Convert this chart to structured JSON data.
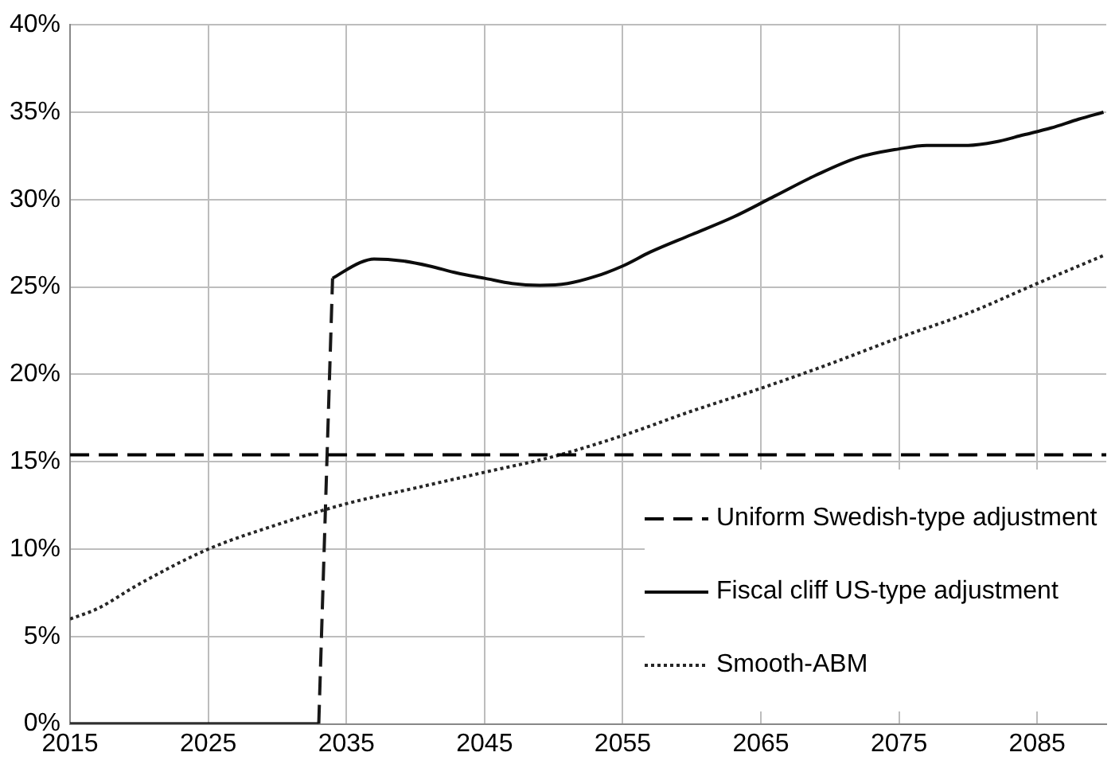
{
  "chart_data": {
    "type": "line",
    "xlim": [
      2015,
      2090
    ],
    "xticks": [
      2015,
      2025,
      2035,
      2045,
      2055,
      2065,
      2075,
      2085
    ],
    "ylim": [
      0,
      40
    ],
    "yticks": [
      {
        "value": 0,
        "label": "0%"
      },
      {
        "value": 5,
        "label": "5%"
      },
      {
        "value": 10,
        "label": "10%"
      },
      {
        "value": 15,
        "label": "15%"
      },
      {
        "value": 20,
        "label": "20%"
      },
      {
        "value": 25,
        "label": "25%"
      },
      {
        "value": 30,
        "label": "30%"
      },
      {
        "value": 35,
        "label": "35%"
      },
      {
        "value": 40,
        "label": "40%"
      }
    ],
    "grid": true,
    "legend": "bottom right",
    "marker": "none",
    "series": [
      {
        "name": "Uniform Swedish-type adjustment",
        "color": "#000000",
        "line_style": "dashed",
        "x": [
          2015,
          2090
        ],
        "values": [
          15.4,
          15.4
        ]
      },
      {
        "name": "Fiscal cliff US-type adjustment",
        "color": "#0c0c0c",
        "line_style": "solid",
        "x": [
          2015,
          2020,
          2025,
          2030,
          2033,
          null,
          2034,
          2036,
          2037,
          2039,
          2041,
          2043,
          2045,
          2047,
          2049,
          2051,
          2053,
          2055,
          2057,
          2060,
          2063,
          2066,
          2069,
          2072,
          2075,
          2077,
          2080,
          2082,
          2084,
          2086,
          2088,
          2089.8
        ],
        "values": [
          0,
          0,
          0,
          0,
          0,
          null,
          25.5,
          26.4,
          26.6,
          26.5,
          26.2,
          25.8,
          25.5,
          25.2,
          25.1,
          25.2,
          25.6,
          26.2,
          27.0,
          28.0,
          29.0,
          30.2,
          31.4,
          32.4,
          32.9,
          33.1,
          33.1,
          33.3,
          33.7,
          34.1,
          34.6,
          35.0
        ]
      },
      {
        "color": "#181818",
        "line_style": "dashed",
        "x": [
          2033,
          2034
        ],
        "values": [
          0,
          25.5
        ]
      },
      {
        "name": "Smooth-ABM",
        "color": "#262626",
        "line_style": "dotted",
        "x": [
          2015,
          2017,
          2020,
          2025,
          2030,
          2035,
          2040,
          2045,
          2050,
          2055,
          2060,
          2065,
          2070,
          2075,
          2080,
          2085,
          2089.8
        ],
        "values": [
          6.0,
          6.6,
          8.0,
          10.0,
          11.4,
          12.6,
          13.5,
          14.4,
          15.3,
          16.5,
          17.9,
          19.2,
          20.6,
          22.1,
          23.5,
          25.2,
          26.8
        ]
      }
    ]
  }
}
